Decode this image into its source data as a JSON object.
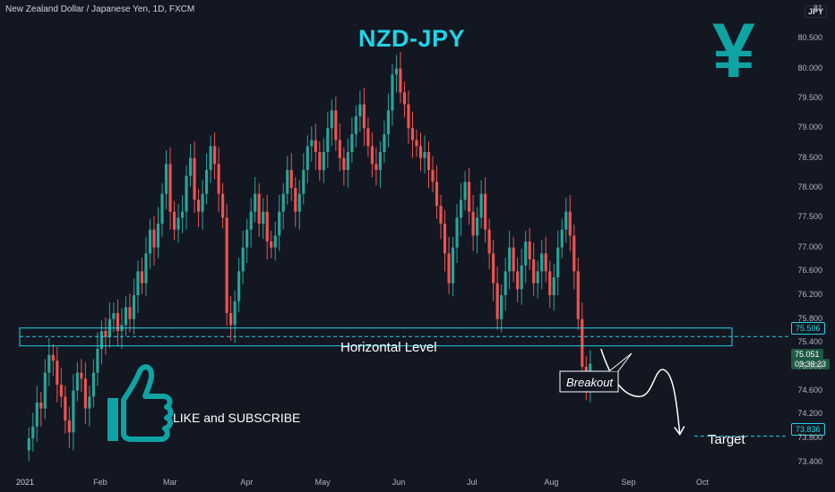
{
  "header": {
    "instrument": "New Zealand Dollar / Japanese Yen, 1D, FXCM",
    "currency_tag": "JPY"
  },
  "title": "NZD-JPY",
  "yen_symbol": "¥",
  "annotations": {
    "horizontal_level": "Horizontal Level",
    "breakout": "Breakout",
    "target": "Target",
    "cta": "LIKE and SUBSCRIBE"
  },
  "price_boxes": {
    "level_price": "75.506",
    "last_price": "75.051",
    "countdown": "03:38:23",
    "target_price": "73.836"
  },
  "colors": {
    "background": "#131722",
    "up": "#26a69a",
    "down": "#ef5350",
    "accent": "#22d3e6",
    "yen": "#0fa3a3"
  },
  "chart_data": {
    "type": "candlestick",
    "title": "NZD-JPY",
    "ylim": [
      73.2,
      81.0
    ],
    "yticks": [
      "81",
      "80.500",
      "80.000",
      "79.500",
      "79.000",
      "78.500",
      "78.000",
      "77.500",
      "77.000",
      "76.600",
      "76.200",
      "75.800",
      "75.400",
      "75.000",
      "74.600",
      "74.200",
      "73.800",
      "73.400"
    ],
    "ytick_values": [
      81.0,
      80.5,
      80.0,
      79.5,
      79.0,
      78.5,
      78.0,
      77.5,
      77.0,
      76.6,
      76.2,
      75.8,
      75.4,
      75.0,
      74.6,
      74.2,
      73.8,
      73.4
    ],
    "xticks": [
      "2021",
      "Feb",
      "Mar",
      "Apr",
      "May",
      "Jun",
      "Jul",
      "Aug",
      "Sep",
      "Oct"
    ],
    "xtick_days": [
      0,
      31,
      59,
      90,
      120,
      151,
      181,
      212,
      243,
      273
    ],
    "horizontal_zone": [
      75.35,
      75.65
    ],
    "horizontal_level": 75.506,
    "target_level": 73.836,
    "closes": [
      73.8,
      74.0,
      74.4,
      74.3,
      74.9,
      75.2,
      75.1,
      74.7,
      74.5,
      74.1,
      73.9,
      74.6,
      74.9,
      74.8,
      74.3,
      74.5,
      74.9,
      75.3,
      75.6,
      75.5,
      75.8,
      75.9,
      75.6,
      75.7,
      76.0,
      75.8,
      76.2,
      76.6,
      76.4,
      76.9,
      77.3,
      77.0,
      77.4,
      77.9,
      78.4,
      77.6,
      77.3,
      77.5,
      77.6,
      78.2,
      78.5,
      77.8,
      77.6,
      77.9,
      78.3,
      78.7,
      78.4,
      77.9,
      77.5,
      75.9,
      75.7,
      76.1,
      76.6,
      77.0,
      77.3,
      77.6,
      77.9,
      77.4,
      77.6,
      77.1,
      77.0,
      77.2,
      77.6,
      77.9,
      78.3,
      78.0,
      77.6,
      77.9,
      78.3,
      78.7,
      78.8,
      78.6,
      78.3,
      78.6,
      79.0,
      79.3,
      78.8,
      78.5,
      78.3,
      78.6,
      78.9,
      79.2,
      79.4,
      79.0,
      78.7,
      78.4,
      78.3,
      78.6,
      78.9,
      79.3,
      79.9,
      80.0,
      79.6,
      79.4,
      79.0,
      78.8,
      78.7,
      78.5,
      78.6,
      78.3,
      78.1,
      77.7,
      77.4,
      76.9,
      76.4,
      77.0,
      77.5,
      77.8,
      78.1,
      77.6,
      77.2,
      77.5,
      77.9,
      77.3,
      76.9,
      76.4,
      75.8,
      76.2,
      76.6,
      77.0,
      76.6,
      76.3,
      76.7,
      77.1,
      76.8,
      76.4,
      76.6,
      76.9,
      76.6,
      76.2,
      76.5,
      77.0,
      77.3,
      77.6,
      77.2,
      76.6,
      75.8,
      75.0,
      74.7,
      75.05
    ]
  }
}
